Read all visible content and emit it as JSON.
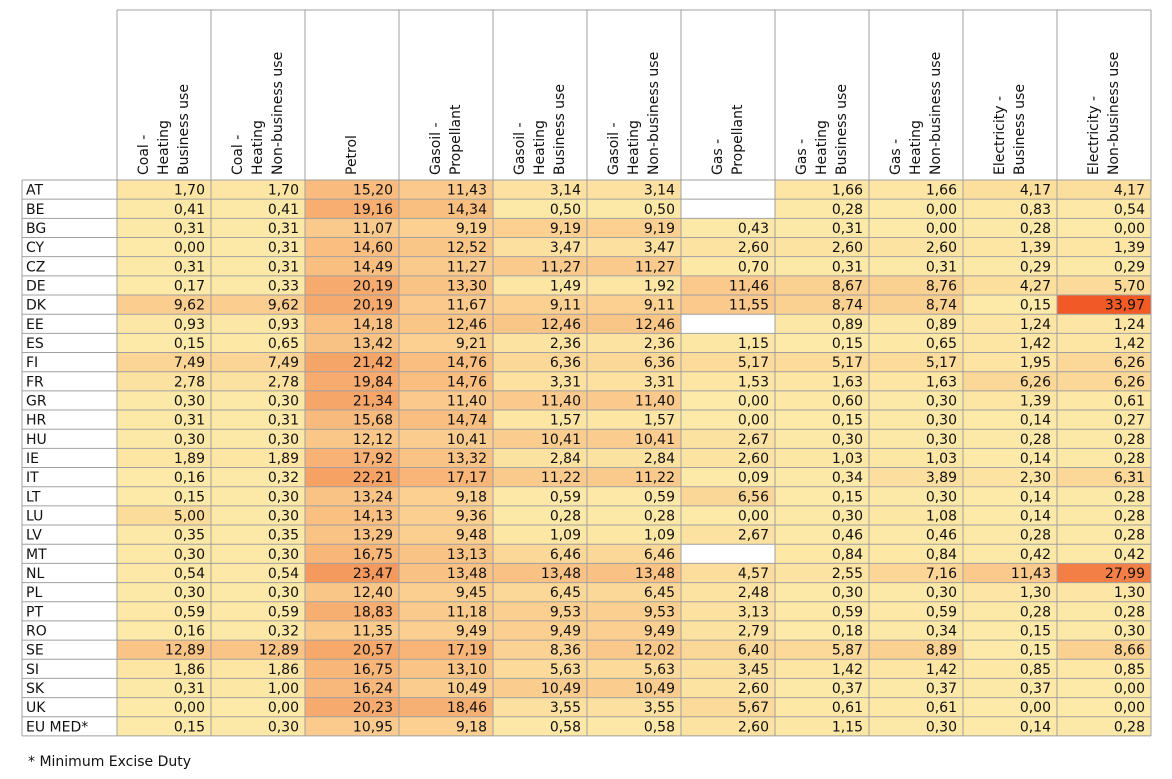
{
  "table": {
    "columns": [
      [
        "Coal -",
        "Heating",
        "Business use"
      ],
      [
        "Coal -",
        "Heating",
        "Non-business use"
      ],
      [
        "Petrol"
      ],
      [
        "Gasoil -",
        "Propellant"
      ],
      [
        "Gasoil -",
        "Heating",
        "Business use"
      ],
      [
        "Gasoil -",
        "Heating",
        "Non-business use"
      ],
      [
        "Gas -",
        "Propellant"
      ],
      [
        "Gas -",
        "Heating",
        "Business use"
      ],
      [
        "Gas -",
        "Heating",
        "Non-business use"
      ],
      [
        "Electricity -",
        "Business use"
      ],
      [
        "Electricity -",
        "Non-business use"
      ]
    ],
    "rows": [
      {
        "label": "AT",
        "cells": [
          "1,70",
          "1,70",
          "15,20",
          "11,43",
          "3,14",
          "3,14",
          null,
          "1,66",
          "1,66",
          "4,17",
          "4,17"
        ]
      },
      {
        "label": "BE",
        "cells": [
          "0,41",
          "0,41",
          "19,16",
          "14,34",
          "0,50",
          "0,50",
          null,
          "0,28",
          "0,00",
          "0,83",
          "0,54"
        ]
      },
      {
        "label": "BG",
        "cells": [
          "0,31",
          "0,31",
          "11,07",
          "9,19",
          "9,19",
          "9,19",
          "0,43",
          "0,31",
          "0,00",
          "0,28",
          "0,00"
        ]
      },
      {
        "label": "CY",
        "cells": [
          "0,00",
          "0,31",
          "14,60",
          "12,52",
          "3,47",
          "3,47",
          "2,60",
          "2,60",
          "2,60",
          "1,39",
          "1,39"
        ]
      },
      {
        "label": "CZ",
        "cells": [
          "0,31",
          "0,31",
          "14,49",
          "11,27",
          "11,27",
          "11,27",
          "0,70",
          "0,31",
          "0,31",
          "0,29",
          "0,29"
        ]
      },
      {
        "label": "DE",
        "cells": [
          "0,17",
          "0,33",
          "20,19",
          "13,30",
          "1,49",
          "1,92",
          "11,46",
          "8,67",
          "8,76",
          "4,27",
          "5,70"
        ]
      },
      {
        "label": "DK",
        "cells": [
          "9,62",
          "9,62",
          "20,19",
          "11,67",
          "9,11",
          "9,11",
          "11,55",
          "8,74",
          "8,74",
          "0,15",
          "33,97"
        ]
      },
      {
        "label": "EE",
        "cells": [
          "0,93",
          "0,93",
          "14,18",
          "12,46",
          "12,46",
          "12,46",
          null,
          "0,89",
          "0,89",
          "1,24",
          "1,24"
        ]
      },
      {
        "label": "ES",
        "cells": [
          "0,15",
          "0,65",
          "13,42",
          "9,21",
          "2,36",
          "2,36",
          "1,15",
          "0,15",
          "0,65",
          "1,42",
          "1,42"
        ]
      },
      {
        "label": "FI",
        "cells": [
          "7,49",
          "7,49",
          "21,42",
          "14,76",
          "6,36",
          "6,36",
          "5,17",
          "5,17",
          "5,17",
          "1,95",
          "6,26"
        ]
      },
      {
        "label": "FR",
        "cells": [
          "2,78",
          "2,78",
          "19,84",
          "14,76",
          "3,31",
          "3,31",
          "1,53",
          "1,63",
          "1,63",
          "6,26",
          "6,26"
        ]
      },
      {
        "label": "GR",
        "cells": [
          "0,30",
          "0,30",
          "21,34",
          "11,40",
          "11,40",
          "11,40",
          "0,00",
          "0,60",
          "0,30",
          "1,39",
          "0,61"
        ]
      },
      {
        "label": "HR",
        "cells": [
          "0,31",
          "0,31",
          "15,68",
          "14,74",
          "1,57",
          "1,57",
          "0,00",
          "0,15",
          "0,30",
          "0,14",
          "0,27"
        ]
      },
      {
        "label": "HU",
        "cells": [
          "0,30",
          "0,30",
          "12,12",
          "10,41",
          "10,41",
          "10,41",
          "2,67",
          "0,30",
          "0,30",
          "0,28",
          "0,28"
        ]
      },
      {
        "label": "IE",
        "cells": [
          "1,89",
          "1,89",
          "17,92",
          "13,32",
          "2,84",
          "2,84",
          "2,60",
          "1,03",
          "1,03",
          "0,14",
          "0,28"
        ]
      },
      {
        "label": "IT",
        "cells": [
          "0,16",
          "0,32",
          "22,21",
          "17,17",
          "11,22",
          "11,22",
          "0,09",
          "0,34",
          "3,89",
          "2,30",
          "6,31"
        ]
      },
      {
        "label": "LT",
        "cells": [
          "0,15",
          "0,30",
          "13,24",
          "9,18",
          "0,59",
          "0,59",
          "6,56",
          "0,15",
          "0,30",
          "0,14",
          "0,28"
        ]
      },
      {
        "label": "LU",
        "cells": [
          "5,00",
          "0,30",
          "14,13",
          "9,36",
          "0,28",
          "0,28",
          "0,00",
          "0,30",
          "1,08",
          "0,14",
          "0,28"
        ]
      },
      {
        "label": "LV",
        "cells": [
          "0,35",
          "0,35",
          "13,29",
          "9,48",
          "1,09",
          "1,09",
          "2,67",
          "0,46",
          "0,46",
          "0,28",
          "0,28"
        ]
      },
      {
        "label": "MT",
        "cells": [
          "0,30",
          "0,30",
          "16,75",
          "13,13",
          "6,46",
          "6,46",
          null,
          "0,84",
          "0,84",
          "0,42",
          "0,42"
        ]
      },
      {
        "label": "NL",
        "cells": [
          "0,54",
          "0,54",
          "23,47",
          "13,48",
          "13,48",
          "13,48",
          "4,57",
          "2,55",
          "7,16",
          "11,43",
          "27,99"
        ]
      },
      {
        "label": "PL",
        "cells": [
          "0,30",
          "0,30",
          "12,40",
          "9,45",
          "6,45",
          "6,45",
          "2,48",
          "0,30",
          "0,30",
          "1,30",
          "1,30"
        ]
      },
      {
        "label": "PT",
        "cells": [
          "0,59",
          "0,59",
          "18,83",
          "11,18",
          "9,53",
          "9,53",
          "3,13",
          "0,59",
          "0,59",
          "0,28",
          "0,28"
        ]
      },
      {
        "label": "RO",
        "cells": [
          "0,16",
          "0,32",
          "11,35",
          "9,49",
          "9,49",
          "9,49",
          "2,79",
          "0,18",
          "0,34",
          "0,15",
          "0,30"
        ]
      },
      {
        "label": "SE",
        "cells": [
          "12,89",
          "12,89",
          "20,57",
          "17,19",
          "8,36",
          "12,02",
          "6,40",
          "5,87",
          "8,89",
          "0,15",
          "8,66"
        ]
      },
      {
        "label": "SI",
        "cells": [
          "1,86",
          "1,86",
          "16,75",
          "13,10",
          "5,63",
          "5,63",
          "3,45",
          "1,42",
          "1,42",
          "0,85",
          "0,85"
        ]
      },
      {
        "label": "SK",
        "cells": [
          "0,31",
          "1,00",
          "16,24",
          "10,49",
          "10,49",
          "10,49",
          "2,60",
          "0,37",
          "0,37",
          "0,37",
          "0,00"
        ]
      },
      {
        "label": "UK",
        "cells": [
          "0,00",
          "0,00",
          "20,23",
          "18,46",
          "3,55",
          "3,55",
          "5,67",
          "0,61",
          "0,61",
          "0,00",
          "0,00"
        ]
      },
      {
        "label": "EU MED*",
        "cells": [
          "0,15",
          "0,30",
          "10,95",
          "9,18",
          "0,58",
          "0,58",
          "2,60",
          "1,15",
          "0,30",
          "0,14",
          "0,28"
        ]
      }
    ]
  },
  "footnote": "* Minimum Excise Duty"
}
